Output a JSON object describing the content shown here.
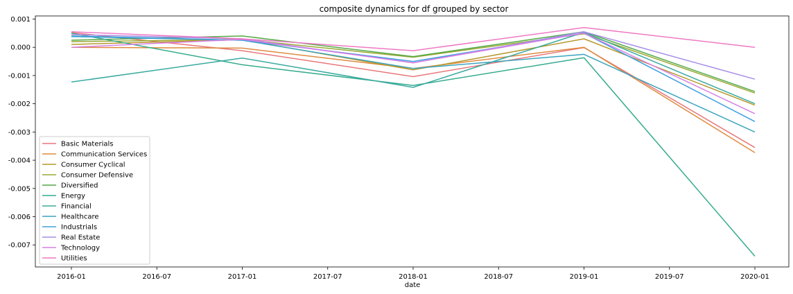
{
  "chart_data": {
    "type": "line",
    "title": "composite dynamics for df grouped by sector",
    "xlabel": "date",
    "ylabel": "",
    "x": [
      "2016-01",
      "2017-01",
      "2018-01",
      "2019-01",
      "2020-01"
    ],
    "xticks": [
      "2016-01",
      "2016-07",
      "2017-01",
      "2017-07",
      "2018-01",
      "2018-07",
      "2019-01",
      "2019-07",
      "2020-01"
    ],
    "yticks": [
      "0.001",
      "0.000",
      "-0.001",
      "-0.002",
      "-0.003",
      "-0.004",
      "-0.005",
      "-0.006",
      "-0.007"
    ],
    "ylim": [
      -0.00778,
      0.00111
    ],
    "legend_position": "lower-left",
    "grid": false,
    "series": [
      {
        "name": "Basic Materials",
        "color": "#e8777b",
        "values": [
          0.00052,
          -0.00012,
          -0.00104,
          -1e-05,
          -0.00355
        ]
      },
      {
        "name": "Communication Services",
        "color": "#de8a3e",
        "values": [
          0.0,
          -3e-05,
          -0.00075,
          0.0,
          -0.00373
        ]
      },
      {
        "name": "Consumer Cyclical",
        "color": "#b6982b",
        "values": [
          0.0001,
          0.00027,
          -0.0008,
          0.0003,
          -0.00205
        ]
      },
      {
        "name": "Consumer Defensive",
        "color": "#9ca933",
        "values": [
          0.0002,
          0.00028,
          -0.00035,
          0.00048,
          -0.00162
        ]
      },
      {
        "name": "Diversified",
        "color": "#55a948",
        "values": [
          0.00025,
          0.0004,
          -0.00033,
          0.00055,
          -0.00157
        ]
      },
      {
        "name": "Energy",
        "color": "#35ab8e",
        "values": [
          0.0005,
          -0.00062,
          -0.00135,
          -0.00037,
          -0.0074
        ]
      },
      {
        "name": "Financial",
        "color": "#3aaaa0",
        "values": [
          -0.00123,
          -0.00038,
          -0.00142,
          0.00053,
          -0.002
        ]
      },
      {
        "name": "Healthcare",
        "color": "#3aa4bf",
        "values": [
          0.0004,
          0.00025,
          -0.00075,
          -0.00025,
          -0.003
        ]
      },
      {
        "name": "Industrials",
        "color": "#3e9ede",
        "values": [
          0.00038,
          0.00025,
          -0.0005,
          0.0005,
          -0.00263
        ]
      },
      {
        "name": "Real Estate",
        "color": "#a68ee8",
        "values": [
          0.00045,
          0.0003,
          -0.00055,
          0.00055,
          -0.00113
        ]
      },
      {
        "name": "Technology",
        "color": "#d77fe6",
        "values": [
          0.0,
          0.00028,
          -0.00055,
          0.0005,
          -0.00235
        ]
      },
      {
        "name": "Utilities",
        "color": "#ee79c4",
        "values": [
          0.00055,
          0.0003,
          -0.00012,
          0.0007,
          0.0
        ]
      }
    ]
  }
}
